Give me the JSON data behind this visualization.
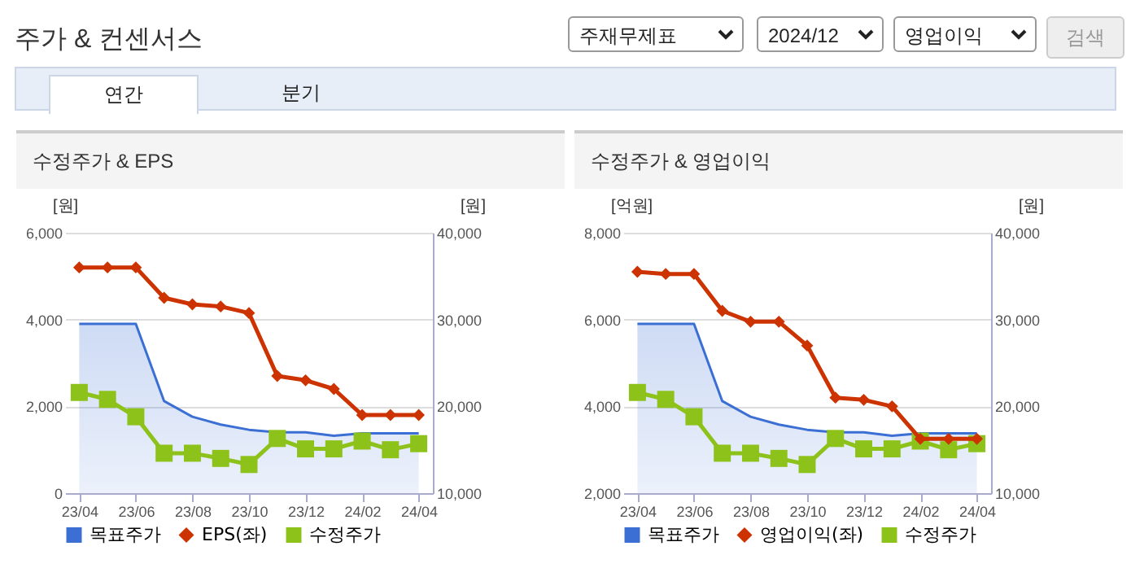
{
  "chart_data": [
    {
      "type": "other",
      "title": "주가 & 컨센서스",
      "annotations": [
        "주재무제표",
        "2024/12",
        "영업이익",
        "검색",
        "연간",
        "분기"
      ]
    },
    {
      "type": "line",
      "title": "수정주가 & EPS",
      "ylabel": "[원]",
      "y2label": "[원]",
      "categories": [
        "23/04",
        null,
        "23/06",
        null,
        "23/08",
        null,
        "23/10",
        null,
        "23/12",
        null,
        "24/02",
        null,
        "24/04"
      ],
      "ylim": [
        0,
        6000
      ],
      "yticks": [
        0,
        {
          "value": 2000,
          "label": "2,000"
        },
        {
          "value": 4000,
          "label": "4,000"
        },
        {
          "value": 6000,
          "label": "6,000"
        }
      ],
      "y2lim": [
        10000,
        40000
      ],
      "y2ticks": [
        {
          "value": 10000,
          "label": "10,000"
        },
        {
          "value": 20000,
          "label": "20,000"
        },
        {
          "value": 30000,
          "label": "30,000"
        },
        {
          "value": 40000,
          "label": "40,000"
        }
      ],
      "grid": "y",
      "legend": "bottom",
      "series": [
        {
          "name": "목표주가",
          "type": "area",
          "axis": "y2",
          "color": "#3b6fd4",
          "values": [
            29500,
            29500,
            29500,
            20600,
            18800,
            17900,
            17300,
            17000,
            17000,
            16600,
            16900,
            16900,
            16900
          ]
        },
        {
          "name": "EPS(좌)",
          "type": "line",
          "axis": "y",
          "color": "#cc3300",
          "marker": "diamond",
          "values": [
            5200,
            5200,
            5200,
            4500,
            4350,
            4300,
            4150,
            2700,
            2600,
            2400,
            1800,
            1800,
            1800
          ]
        },
        {
          "name": "수정주가",
          "type": "line",
          "axis": "y2",
          "color": "#8cc21a",
          "marker": "square",
          "values": [
            21600,
            20800,
            18800,
            14600,
            14600,
            14000,
            13300,
            16300,
            15100,
            15100,
            16000,
            15000,
            15700
          ]
        }
      ]
    },
    {
      "type": "line",
      "title": "수정주가 & 영업이익",
      "ylabel": "[억원]",
      "y2label": "[원]",
      "categories": [
        "23/04",
        null,
        "23/06",
        null,
        "23/08",
        null,
        "23/10",
        null,
        "23/12",
        null,
        "24/02",
        null,
        "24/04"
      ],
      "ylim": [
        2000,
        8000
      ],
      "yticks": [
        {
          "value": 2000,
          "label": "2,000"
        },
        {
          "value": 4000,
          "label": "4,000"
        },
        {
          "value": 6000,
          "label": "6,000"
        },
        {
          "value": 8000,
          "label": "8,000"
        }
      ],
      "y2lim": [
        10000,
        40000
      ],
      "y2ticks": [
        {
          "value": 10000,
          "label": "10,000"
        },
        {
          "value": 20000,
          "label": "20,000"
        },
        {
          "value": 30000,
          "label": "30,000"
        },
        {
          "value": 40000,
          "label": "40,000"
        }
      ],
      "grid": "y",
      "legend": "bottom",
      "series": [
        {
          "name": "목표주가",
          "type": "area",
          "axis": "y2",
          "color": "#3b6fd4",
          "values": [
            29500,
            29500,
            29500,
            20600,
            18800,
            17900,
            17300,
            17000,
            17000,
            16600,
            16900,
            16900,
            16900
          ]
        },
        {
          "name": "영업이익(좌)",
          "type": "line",
          "axis": "y",
          "color": "#cc3300",
          "marker": "diamond",
          "values": [
            7100,
            7050,
            7050,
            6200,
            5950,
            5950,
            5400,
            4200,
            4150,
            4000,
            3250,
            3250,
            3250
          ]
        },
        {
          "name": "수정주가",
          "type": "line",
          "axis": "y2",
          "color": "#8cc21a",
          "marker": "square",
          "values": [
            21600,
            20800,
            18800,
            14600,
            14600,
            14000,
            13300,
            16300,
            15100,
            15100,
            16000,
            15000,
            15700
          ]
        }
      ]
    }
  ]
}
